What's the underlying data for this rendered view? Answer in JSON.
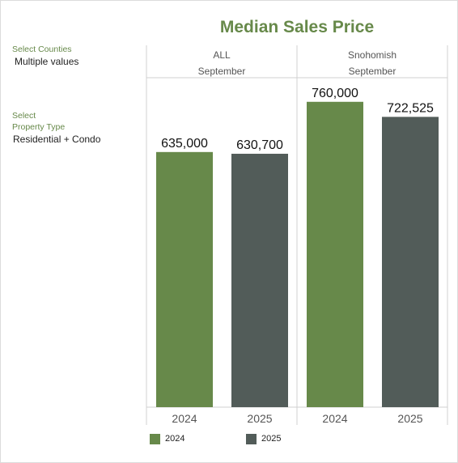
{
  "colors": {
    "2024": "#67894a",
    "2025": "#525c59",
    "title": "#67894a",
    "filter_label": "#67894a"
  },
  "filters": {
    "counties": {
      "label": "Select Counties",
      "value": "Multiple values"
    },
    "property_type": {
      "label_line1": "Select",
      "label_line2": "Property Type",
      "value": "Residential + Condo"
    }
  },
  "chart_data": {
    "type": "bar",
    "title": "Median Sales Price",
    "panels": [
      {
        "name": "ALL",
        "month": "September",
        "categories": [
          "2024",
          "2025"
        ],
        "values": [
          635000,
          630700
        ],
        "labels": [
          "635,000",
          "630,700"
        ]
      },
      {
        "name": "Snohomish",
        "month": "September",
        "categories": [
          "2024",
          "2025"
        ],
        "values": [
          760000,
          722525
        ],
        "labels": [
          "760,000",
          "722,525"
        ]
      }
    ],
    "ylim": [
      0,
      820000
    ],
    "legend": {
      "position": "bottom",
      "entries": [
        "2024",
        "2025"
      ]
    }
  }
}
